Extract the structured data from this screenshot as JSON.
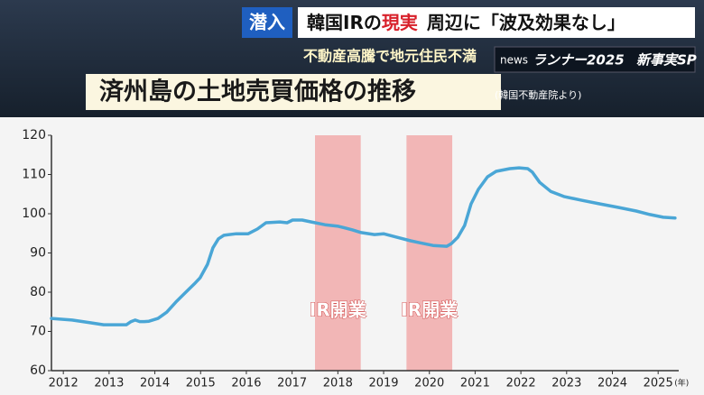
{
  "header": {
    "tag": "潜入",
    "headline_parts": [
      "韓国IRの",
      "現実",
      "周辺に",
      "「波及効果なし」"
    ],
    "subheadline": "不動産高騰で地元住民不満",
    "logo": {
      "brand": "news",
      "program": "ランナー2025",
      "special": "新事実SP"
    }
  },
  "chart_data": {
    "type": "line",
    "title": "済州島の土地売買価格の推移",
    "subtitle": "(韓国不動産院より)",
    "x_label": "(年)",
    "x": [
      2011.74,
      2012.19,
      2012.59,
      2012.88,
      2013.18,
      2013.38,
      2013.48,
      2013.57,
      2013.67,
      2013.77,
      2013.87,
      2014.07,
      2014.26,
      2014.46,
      2014.66,
      2014.86,
      2014.99,
      2015.15,
      2015.27,
      2015.39,
      2015.51,
      2015.78,
      2016.04,
      2016.24,
      2016.43,
      2016.73,
      2016.89,
      2017.01,
      2017.22,
      2017.42,
      2017.72,
      2018.01,
      2018.31,
      2018.51,
      2018.8,
      2019.0,
      2019.29,
      2019.59,
      2019.79,
      2020.08,
      2020.38,
      2020.48,
      2020.62,
      2020.77,
      2020.91,
      2021.07,
      2021.27,
      2021.46,
      2021.76,
      2021.96,
      2022.15,
      2022.25,
      2022.41,
      2022.65,
      2022.94,
      2023.34,
      2023.73,
      2024.13,
      2024.52,
      2024.82,
      2025.11,
      2025.37
    ],
    "values": [
      73.3,
      72.9,
      72.2,
      71.7,
      71.7,
      71.7,
      72.5,
      72.9,
      72.5,
      72.5,
      72.6,
      73.3,
      74.9,
      77.5,
      79.8,
      82.1,
      83.7,
      87.1,
      91.3,
      93.6,
      94.5,
      94.9,
      94.9,
      96.1,
      97.7,
      97.9,
      97.7,
      98.4,
      98.4,
      97.9,
      97.2,
      96.8,
      95.9,
      95.2,
      94.7,
      94.9,
      94.0,
      93.1,
      92.6,
      91.9,
      91.7,
      92.4,
      94.0,
      97.0,
      102.5,
      106.2,
      109.4,
      110.8,
      111.5,
      111.7,
      111.5,
      110.6,
      108.0,
      105.7,
      104.4,
      103.4,
      102.5,
      101.6,
      100.7,
      99.8,
      99.1,
      98.9
    ],
    "color": "#4aa6d6",
    "xlim": [
      2011.74,
      2025.45
    ],
    "xticks": [
      2012,
      2013,
      2014,
      2015,
      2016,
      2017,
      2018,
      2019,
      2020,
      2021,
      2022,
      2023,
      2024,
      2025
    ],
    "ylim": [
      60,
      120
    ],
    "yticks": [
      60,
      70,
      80,
      90,
      100,
      110,
      120
    ],
    "grid": false,
    "spans": [
      {
        "x0": 2017.5,
        "x1": 2018.5,
        "label": "IR開業",
        "color": "#f08c8c"
      },
      {
        "x0": 2019.5,
        "x1": 2020.5,
        "label": "IR開業",
        "color": "#f08c8c"
      }
    ]
  }
}
